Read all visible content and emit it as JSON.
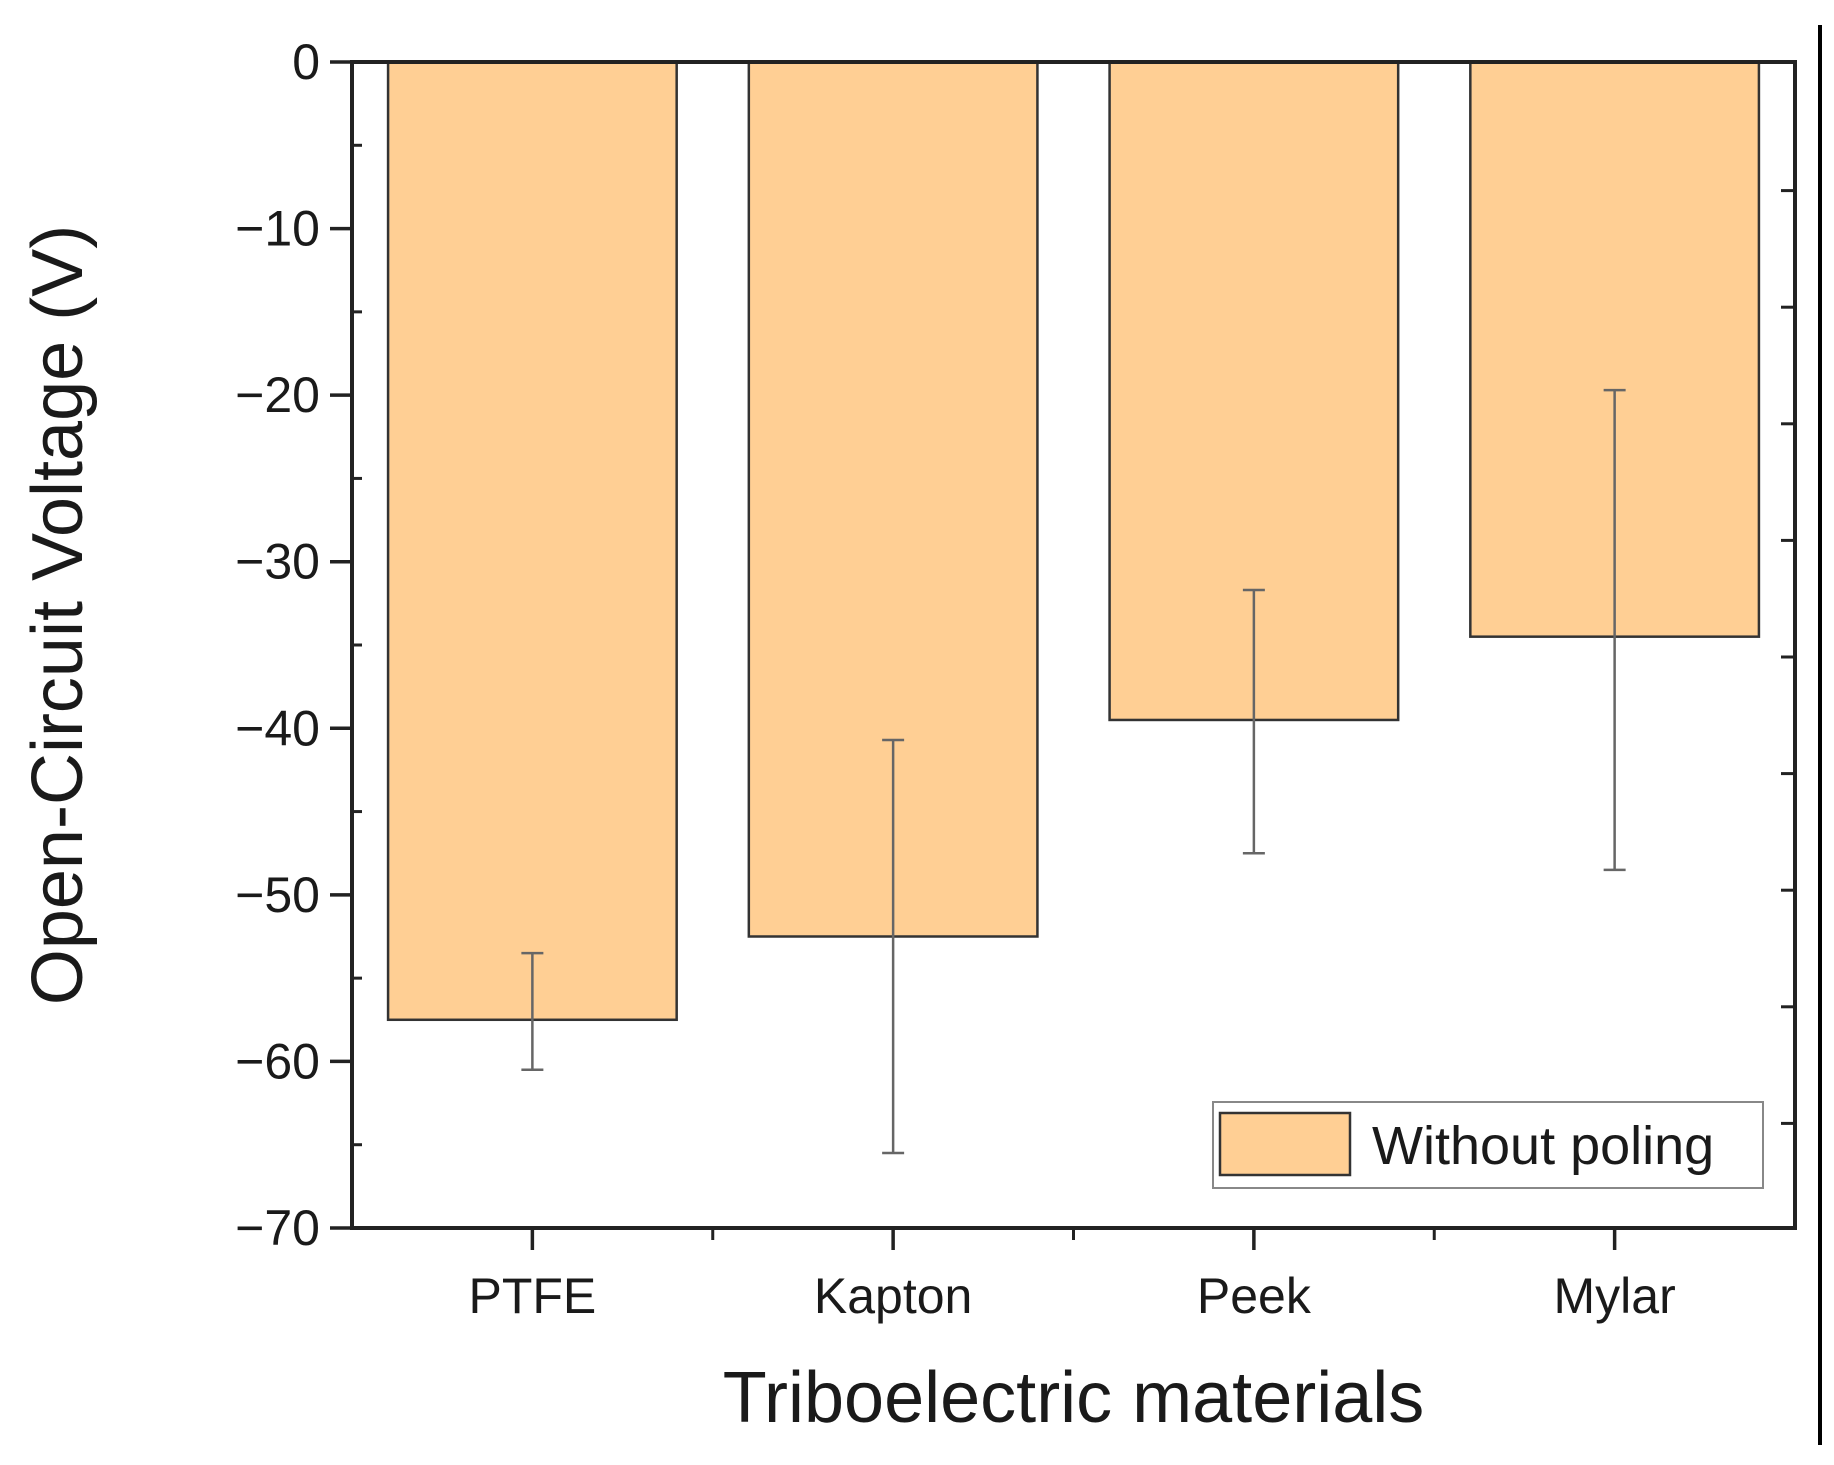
{
  "chart_data": {
    "type": "bar",
    "title": "",
    "xlabel": "Triboelectric materials",
    "ylabel": "Open-Circuit Voltage (V)",
    "ylim": [
      -70,
      0
    ],
    "yticks": [
      0,
      -10,
      -20,
      -30,
      -40,
      -50,
      -60,
      -70
    ],
    "ytick_labels": [
      "0",
      "−10",
      "−20",
      "−30",
      "−40",
      "−50",
      "−60",
      "−70"
    ],
    "categories": [
      "PTFE",
      "Kapton",
      "Peek",
      "Mylar"
    ],
    "series": [
      {
        "name": "Without poling",
        "values": [
          -57.5,
          -52.5,
          -39.5,
          -34.5
        ],
        "error_upper": [
          -53.5,
          -40.7,
          -31.7,
          -19.7
        ],
        "error_lower": [
          -60.5,
          -65.5,
          -47.5,
          -48.5
        ]
      }
    ],
    "legend": {
      "position": "bottom-right",
      "label": "Without poling"
    },
    "grid": false,
    "colors": {
      "bar_fill": "#FFCF94",
      "bar_stroke": "#333333",
      "axis": "#222222",
      "error_bar": "#666666"
    }
  }
}
